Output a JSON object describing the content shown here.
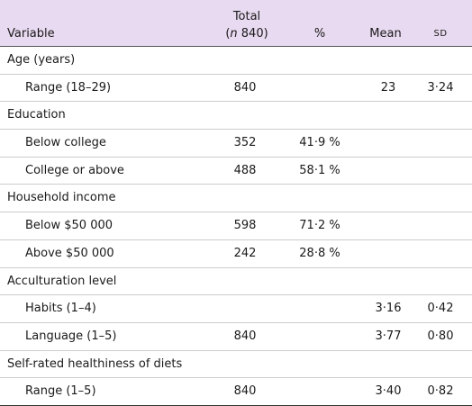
{
  "header": {
    "variable": "Variable",
    "total": "Total",
    "total_sub": [
      "(",
      "n",
      " 840)"
    ],
    "percent": "%",
    "mean": "Mean",
    "sd": "SD"
  },
  "table": {
    "rows": [
      [
        "Age (years)"
      ],
      [
        "Range (18–29)",
        "840",
        null,
        "23",
        "3·24"
      ],
      [
        "Education"
      ],
      [
        "Below college",
        "352",
        "41·9 %",
        null,
        null
      ],
      [
        "College or above",
        "488",
        "58·1 %",
        null,
        null
      ],
      [
        "Household income"
      ],
      [
        "Below $50 000",
        "598",
        "71·2 %",
        null,
        null
      ],
      [
        "Above $50 000",
        "242",
        "28·8 %",
        null,
        null
      ],
      [
        "Acculturation level"
      ],
      [
        "Habits (1–4)",
        null,
        null,
        "3·16",
        "0·42"
      ],
      [
        "Language (1–5)",
        "840",
        null,
        "3·77",
        "0·80"
      ],
      [
        "Self-rated healthiness of diets"
      ],
      [
        "Range (1–5)",
        "840",
        null,
        "3·40",
        "0·82"
      ]
    ]
  }
}
